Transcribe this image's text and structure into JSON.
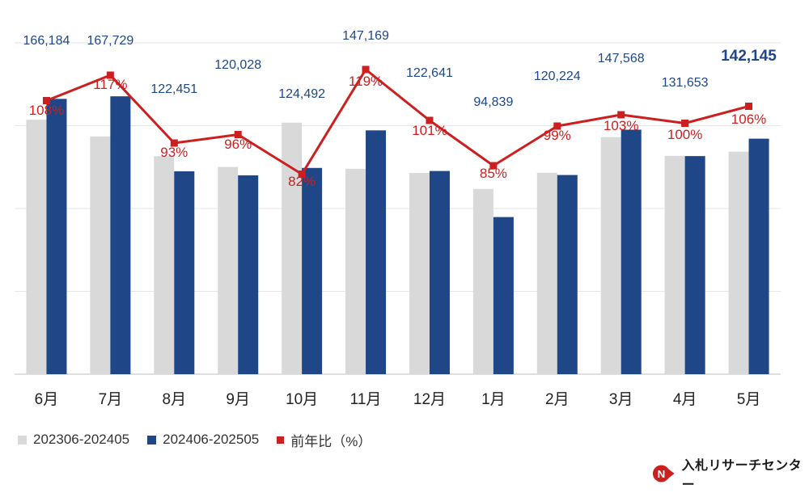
{
  "chart_data": {
    "type": "bar",
    "categories": [
      "6月",
      "7月",
      "8月",
      "9月",
      "10月",
      "11月",
      "12月",
      "1月",
      "2月",
      "3月",
      "4月",
      "5月"
    ],
    "series": [
      {
        "name": "202306-202405",
        "color": "#d9d9d9",
        "values": [
          153600,
          143500,
          131600,
          125100,
          151800,
          124000,
          121500,
          111800,
          121600,
          143100,
          131800,
          134300
        ]
      },
      {
        "name": "202406-202505",
        "color": "#1f4687",
        "values": [
          166184,
          167729,
          122451,
          120028,
          124492,
          147169,
          122641,
          94839,
          120224,
          147568,
          131653,
          142145
        ]
      }
    ],
    "line": {
      "name": "前年比（%）",
      "color": "#cc1f1f",
      "values": [
        108,
        117,
        93,
        96,
        82,
        119,
        101,
        85,
        99,
        103,
        100,
        106
      ],
      "labels": [
        "108%",
        "117%",
        "93%",
        "96%",
        "82%",
        "119%",
        "101%",
        "85%",
        "99%",
        "103%",
        "100%",
        "106%"
      ]
    },
    "value_labels": [
      "166,184",
      "167,729",
      "122,451",
      "120,028",
      "124,492",
      "147,169",
      "122,641",
      "94,839",
      "120,224",
      "147,568",
      "131,653",
      "142,145"
    ],
    "highlight_last": true,
    "ylim": [
      0,
      200000
    ],
    "grid": true,
    "legend_position": "bottom-left"
  },
  "legend": [
    {
      "label": "202306-202405",
      "color": "#d9d9d9"
    },
    {
      "label": "202406-202505",
      "color": "#1f4687"
    },
    {
      "label": "前年比（%）",
      "color": "#cc1f1f"
    }
  ],
  "brand": {
    "name": "入札リサーチセンター",
    "mark": "N",
    "mark_color": "#cc1f1f"
  }
}
